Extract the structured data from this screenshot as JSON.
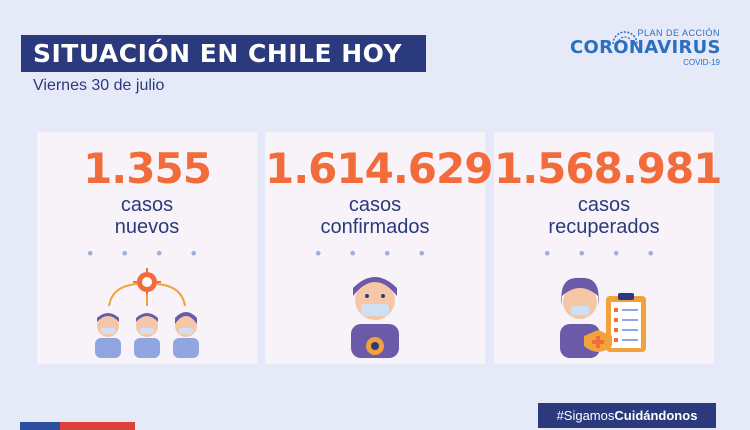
{
  "header": {
    "title": "SITUACIÓN EN CHILE HOY",
    "date": "Viernes 30 de julio"
  },
  "logo": {
    "plan": "PLAN DE ACCIÓN",
    "name": "CORONAVIRUS",
    "sub": "COVID-19"
  },
  "cards": [
    {
      "value": "1.355",
      "line1": "casos",
      "line2": "nuevos",
      "dots": "• • • •",
      "icon": "people-contagion-icon"
    },
    {
      "value": "1.614.629",
      "line1": "casos",
      "line2": "confirmados",
      "dots": "• • • •",
      "icon": "masked-person-virus-icon"
    },
    {
      "value": "1.568.981",
      "line1": "casos",
      "line2": "recuperados",
      "dots": "• • • •",
      "icon": "recovered-clipboard-icon"
    }
  ],
  "footer": {
    "hashtag_prefix": "#Sigamos",
    "hashtag_bold": "Cuidándonos"
  },
  "colors": {
    "background": "#e6e9f8",
    "navy": "#2a3a7c",
    "accent": "#f26b3a",
    "card": "#f7f3f8"
  }
}
